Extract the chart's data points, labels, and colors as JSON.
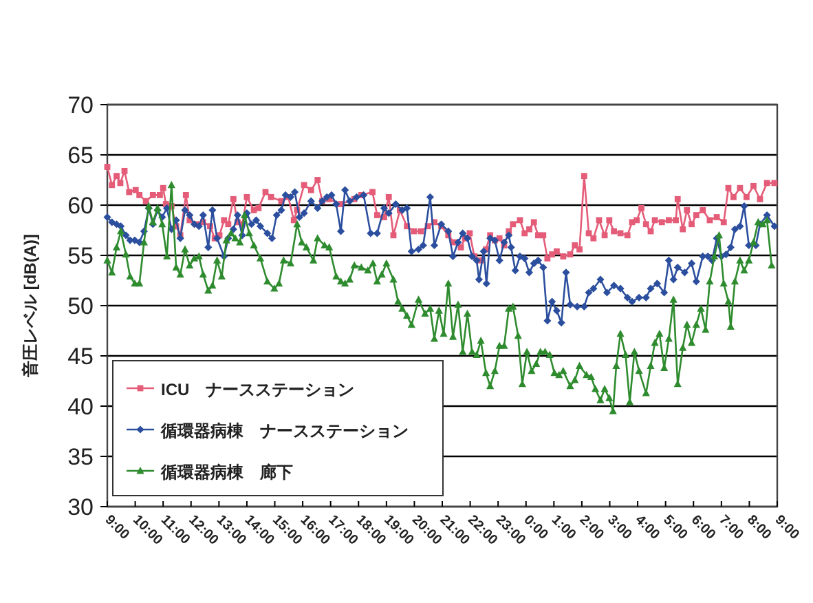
{
  "chart_data": {
    "type": "line",
    "ylabel": "音圧レベル [dB(A)]",
    "xlim": [
      "2000-01-01T09:00",
      "2000-01-02T09:00"
    ],
    "xticks": [
      {
        "value": "2000-01-01T09:00",
        "label": "9:00"
      },
      {
        "value": "2000-01-01T10:00",
        "label": "10:00"
      },
      {
        "value": "2000-01-01T11:00",
        "label": "11:00"
      },
      {
        "value": "2000-01-01T12:00",
        "label": "12:00"
      },
      {
        "value": "2000-01-01T13:00",
        "label": "13:00"
      },
      {
        "value": "2000-01-01T14:00",
        "label": "14:00"
      },
      {
        "value": "2000-01-01T15:00",
        "label": "15:00"
      },
      {
        "value": "2000-01-01T16:00",
        "label": "16:00"
      },
      {
        "value": "2000-01-01T17:00",
        "label": "17:00"
      },
      {
        "value": "2000-01-01T18:00",
        "label": "18:00"
      },
      {
        "value": "2000-01-01T19:00",
        "label": "19:00"
      },
      {
        "value": "2000-01-01T20:00",
        "label": "20:00"
      },
      {
        "value": "2000-01-01T21:00",
        "label": "21:00"
      },
      {
        "value": "2000-01-01T22:00",
        "label": "22:00"
      },
      {
        "value": "2000-01-01T23:00",
        "label": "23:00"
      },
      {
        "value": "2000-01-02T00:00",
        "label": "0:00"
      },
      {
        "value": "2000-01-02T01:00",
        "label": "1:00"
      },
      {
        "value": "2000-01-02T02:00",
        "label": "2:00"
      },
      {
        "value": "2000-01-02T03:00",
        "label": "3:00"
      },
      {
        "value": "2000-01-02T04:00",
        "label": "4:00"
      },
      {
        "value": "2000-01-02T05:00",
        "label": "5:00"
      },
      {
        "value": "2000-01-02T06:00",
        "label": "6:00"
      },
      {
        "value": "2000-01-02T07:00",
        "label": "7:00"
      },
      {
        "value": "2000-01-02T08:00",
        "label": "8:00"
      },
      {
        "value": "2000-01-02T09:00",
        "label": "9:00"
      }
    ],
    "ylim": [
      30,
      70
    ],
    "yticks": [
      30,
      35,
      40,
      45,
      50,
      55,
      60,
      65,
      70
    ],
    "grid": "y",
    "legend": "bottom left",
    "line_style": "solid",
    "series": [
      {
        "name": "ICU　ナースステーション",
        "color": "#e45c78",
        "marker": "square",
        "x": [
          "2000-01-01T09:00",
          "2000-01-01T09:10",
          "2000-01-01T09:20",
          "2000-01-01T09:28",
          "2000-01-01T09:37",
          "2000-01-01T09:47",
          "2000-01-01T10:01",
          "2000-01-01T10:09",
          "2000-01-01T10:23",
          "2000-01-01T10:38",
          "2000-01-01T10:53",
          "2000-01-01T11:00",
          "2000-01-01T11:06",
          "2000-01-01T11:18",
          "2000-01-01T11:28",
          "2000-01-01T11:37",
          "2000-01-01T11:49",
          "2000-01-01T11:57",
          "2000-01-01T12:12",
          "2000-01-01T12:26",
          "2000-01-01T12:41",
          "2000-01-01T12:51",
          "2000-01-01T13:01",
          "2000-01-01T13:11",
          "2000-01-01T13:20",
          "2000-01-01T13:31",
          "2000-01-01T13:40",
          "2000-01-01T13:50",
          "2000-01-01T14:00",
          "2000-01-01T14:15",
          "2000-01-01T14:25",
          "2000-01-01T14:40",
          "2000-01-01T14:52",
          "2000-01-01T15:14",
          "2000-01-01T15:29",
          "2000-01-01T15:41",
          "2000-01-01T15:48",
          "2000-01-01T16:03",
          "2000-01-01T16:18",
          "2000-01-01T16:32",
          "2000-01-01T16:42",
          "2000-01-01T16:57",
          "2000-01-01T17:22",
          "2000-01-01T17:51",
          "2000-01-01T18:06",
          "2000-01-01T18:30",
          "2000-01-01T18:40",
          "2000-01-01T18:55",
          "2000-01-01T19:05",
          "2000-01-01T19:15",
          "2000-01-01T19:29",
          "2000-01-01T19:44",
          "2000-01-01T19:59",
          "2000-01-01T20:14",
          "2000-01-01T20:29",
          "2000-01-01T20:43",
          "2000-01-01T20:58",
          "2000-01-01T21:13",
          "2000-01-01T21:25",
          "2000-01-01T21:40",
          "2000-01-01T21:49",
          "2000-01-01T21:59",
          "2000-01-01T22:09",
          "2000-01-01T22:23",
          "2000-01-01T22:34",
          "2000-01-01T22:43",
          "2000-01-01T22:53",
          "2000-01-01T23:03",
          "2000-01-01T23:13",
          "2000-01-01T23:23",
          "2000-01-01T23:32",
          "2000-01-01T23:47",
          "2000-01-01T23:57",
          "2000-01-02T00:07",
          "2000-01-02T00:17",
          "2000-01-02T00:26",
          "2000-01-02T00:37",
          "2000-01-02T00:46",
          "2000-01-02T00:56",
          "2000-01-02T01:06",
          "2000-01-02T01:20",
          "2000-01-02T01:35",
          "2000-01-02T01:45",
          "2000-01-02T01:55",
          "2000-01-02T02:05",
          "2000-01-02T02:15",
          "2000-01-02T02:25",
          "2000-01-02T02:37",
          "2000-01-02T02:49",
          "2000-01-02T02:59",
          "2000-01-02T03:09",
          "2000-01-02T03:23",
          "2000-01-02T03:38",
          "2000-01-02T03:48",
          "2000-01-02T03:58",
          "2000-01-02T04:08",
          "2000-01-02T04:18",
          "2000-01-02T04:28",
          "2000-01-02T04:37",
          "2000-01-02T04:52",
          "2000-01-02T05:07",
          "2000-01-02T05:22",
          "2000-01-02T05:26",
          "2000-01-02T05:37",
          "2000-01-02T05:46",
          "2000-01-02T05:56",
          "2000-01-02T06:06",
          "2000-01-02T06:20",
          "2000-01-02T06:35",
          "2000-01-02T06:50",
          "2000-01-02T07:05",
          "2000-01-02T07:15",
          "2000-01-02T07:26",
          "2000-01-02T07:40",
          "2000-01-02T07:54",
          "2000-01-02T08:09",
          "2000-01-02T08:23",
          "2000-01-02T08:38",
          "2000-01-02T08:54"
        ],
        "values": [
          63.8,
          62.0,
          62.9,
          62.2,
          63.4,
          61.3,
          61.5,
          61.0,
          60.4,
          61.0,
          61.0,
          61.7,
          60.1,
          59.9,
          57.9,
          57.0,
          61.0,
          58.5,
          58.1,
          58.3,
          57.9,
          56.7,
          57.0,
          58.5,
          58.1,
          60.6,
          58.3,
          58.1,
          60.8,
          59.5,
          59.7,
          61.3,
          60.8,
          60.4,
          60.8,
          58.5,
          59.5,
          62.0,
          61.5,
          62.5,
          60.4,
          60.6,
          60.1,
          60.6,
          61.0,
          61.3,
          59.0,
          58.8,
          60.8,
          57.0,
          59.5,
          57.9,
          57.4,
          57.4,
          57.9,
          58.3,
          57.9,
          57.0,
          56.3,
          55.8,
          56.7,
          57.2,
          54.9,
          54.5,
          55.6,
          57.0,
          56.5,
          56.7,
          56.0,
          57.4,
          58.1,
          58.5,
          57.2,
          57.6,
          58.3,
          57.0,
          57.0,
          54.7,
          55.1,
          55.4,
          54.9,
          55.1,
          56.0,
          55.6,
          62.9,
          57.2,
          56.7,
          58.5,
          57.0,
          58.5,
          57.4,
          57.2,
          57.0,
          58.3,
          58.5,
          59.7,
          58.1,
          57.4,
          58.5,
          58.3,
          58.5,
          58.5,
          60.6,
          57.6,
          59.5,
          58.1,
          59.0,
          59.5,
          58.5,
          58.8,
          58.3,
          61.7,
          60.8,
          61.7,
          60.8,
          61.9,
          60.6,
          62.2,
          62.2
        ]
      },
      {
        "name": "循環器病棟　ナースステーション",
        "color": "#2b4f9e",
        "marker": "diamond",
        "x": [
          "2000-01-01T09:00",
          "2000-01-01T09:10",
          "2000-01-01T09:20",
          "2000-01-01T09:29",
          "2000-01-01T09:40",
          "2000-01-01T09:49",
          "2000-01-01T09:59",
          "2000-01-01T10:09",
          "2000-01-01T10:19",
          "2000-01-01T10:29",
          "2000-01-01T10:38",
          "2000-01-01T10:48",
          "2000-01-01T10:58",
          "2000-01-01T11:08",
          "2000-01-01T11:18",
          "2000-01-01T11:28",
          "2000-01-01T11:37",
          "2000-01-01T11:47",
          "2000-01-01T11:57",
          "2000-01-01T12:07",
          "2000-01-01T12:17",
          "2000-01-01T12:26",
          "2000-01-01T12:37",
          "2000-01-01T12:46",
          "2000-01-01T12:56",
          "2000-01-01T13:11",
          "2000-01-01T13:20",
          "2000-01-01T13:31",
          "2000-01-01T13:40",
          "2000-01-01T13:50",
          "2000-01-01T14:00",
          "2000-01-01T14:10",
          "2000-01-01T14:20",
          "2000-01-01T14:29",
          "2000-01-01T14:44",
          "2000-01-01T14:54",
          "2000-01-01T15:04",
          "2000-01-01T15:14",
          "2000-01-01T15:23",
          "2000-01-01T15:34",
          "2000-01-01T15:43",
          "2000-01-01T15:53",
          "2000-01-01T16:03",
          "2000-01-01T16:18",
          "2000-01-01T16:32",
          "2000-01-01T16:42",
          "2000-01-01T16:52",
          "2000-01-01T17:02",
          "2000-01-01T17:12",
          "2000-01-01T17:22",
          "2000-01-01T17:31",
          "2000-01-01T17:41",
          "2000-01-01T17:56",
          "2000-01-01T18:11",
          "2000-01-01T18:26",
          "2000-01-01T18:40",
          "2000-01-01T18:55",
          "2000-01-01T19:05",
          "2000-01-01T19:20",
          "2000-01-01T19:34",
          "2000-01-01T19:44",
          "2000-01-01T19:54",
          "2000-01-01T20:09",
          "2000-01-01T20:19",
          "2000-01-01T20:34",
          "2000-01-01T20:43",
          "2000-01-01T20:58",
          "2000-01-01T21:13",
          "2000-01-01T21:23",
          "2000-01-01T21:34",
          "2000-01-01T21:44",
          "2000-01-01T21:54",
          "2000-01-01T22:04",
          "2000-01-01T22:14",
          "2000-01-01T22:19",
          "2000-01-01T22:29",
          "2000-01-01T22:35",
          "2000-01-01T22:43",
          "2000-01-01T22:53",
          "2000-01-01T23:03",
          "2000-01-01T23:13",
          "2000-01-01T23:23",
          "2000-01-01T23:28",
          "2000-01-01T23:37",
          "2000-01-01T23:47",
          "2000-01-01T23:57",
          "2000-01-02T00:07",
          "2000-01-02T00:17",
          "2000-01-02T00:26",
          "2000-01-02T00:37",
          "2000-01-02T00:46",
          "2000-01-02T00:56",
          "2000-01-02T01:06",
          "2000-01-02T01:16",
          "2000-01-02T01:26",
          "2000-01-02T01:35",
          "2000-01-02T01:50",
          "2000-01-02T02:05",
          "2000-01-02T02:15",
          "2000-01-02T02:25",
          "2000-01-02T02:40",
          "2000-01-02T02:54",
          "2000-01-02T03:09",
          "2000-01-02T03:23",
          "2000-01-02T03:38",
          "2000-01-02T03:48",
          "2000-01-02T04:03",
          "2000-01-02T04:18",
          "2000-01-02T04:28",
          "2000-01-02T04:42",
          "2000-01-02T04:57",
          "2000-01-02T05:07",
          "2000-01-02T05:17",
          "2000-01-02T05:26",
          "2000-01-02T05:41",
          "2000-01-02T05:56",
          "2000-01-02T06:06",
          "2000-01-02T06:20",
          "2000-01-02T06:31",
          "2000-01-02T06:40",
          "2000-01-02T06:50",
          "2000-01-02T07:00",
          "2000-01-02T07:10",
          "2000-01-02T07:20",
          "2000-01-02T07:29",
          "2000-01-02T07:40",
          "2000-01-02T07:49",
          "2000-01-02T07:59",
          "2000-01-02T08:14",
          "2000-01-02T08:23",
          "2000-01-02T08:38",
          "2000-01-02T08:54"
        ],
        "values": [
          58.8,
          58.3,
          58.1,
          57.9,
          57.0,
          56.5,
          56.5,
          56.3,
          57.4,
          59.7,
          58.1,
          59.5,
          58.8,
          59.7,
          57.6,
          58.5,
          56.7,
          59.5,
          59.0,
          58.1,
          57.9,
          59.0,
          55.8,
          59.5,
          56.7,
          54.9,
          56.7,
          57.6,
          59.0,
          57.0,
          59.2,
          58.1,
          58.5,
          57.9,
          57.2,
          56.7,
          59.0,
          59.5,
          61.0,
          60.8,
          61.3,
          58.8,
          59.2,
          60.4,
          59.7,
          60.4,
          60.8,
          61.0,
          60.1,
          57.4,
          61.5,
          60.4,
          60.8,
          61.0,
          57.2,
          57.2,
          59.7,
          59.2,
          60.1,
          59.5,
          59.7,
          55.4,
          55.6,
          56.0,
          60.8,
          56.0,
          58.1,
          57.4,
          54.9,
          56.3,
          57.2,
          56.7,
          54.9,
          54.5,
          52.6,
          55.4,
          52.2,
          56.7,
          56.5,
          54.5,
          56.3,
          57.0,
          55.8,
          53.5,
          54.9,
          54.7,
          53.3,
          54.2,
          54.5,
          53.8,
          48.5,
          50.4,
          49.5,
          48.3,
          53.3,
          50.1,
          49.9,
          49.9,
          51.3,
          51.7,
          52.6,
          51.3,
          52.0,
          51.7,
          50.8,
          50.4,
          50.8,
          50.8,
          51.7,
          52.2,
          51.3,
          54.5,
          52.6,
          53.8,
          53.3,
          54.2,
          52.4,
          54.9,
          54.9,
          54.5,
          56.7,
          54.9,
          55.1,
          55.8,
          57.6,
          57.9,
          59.9,
          56.0,
          56.0,
          58.1,
          59.0,
          57.9
        ]
      },
      {
        "name": "循環器病棟　廊下",
        "color": "#2e8b2e",
        "marker": "triangle",
        "x": [
          "2000-01-01T09:00",
          "2000-01-01T09:10",
          "2000-01-01T09:20",
          "2000-01-01T09:29",
          "2000-01-01T09:40",
          "2000-01-01T09:49",
          "2000-01-01T09:59",
          "2000-01-01T10:09",
          "2000-01-01T10:19",
          "2000-01-01T10:29",
          "2000-01-01T10:38",
          "2000-01-01T10:48",
          "2000-01-01T10:58",
          "2000-01-01T11:08",
          "2000-01-01T11:18",
          "2000-01-01T11:28",
          "2000-01-01T11:37",
          "2000-01-01T11:47",
          "2000-01-01T11:57",
          "2000-01-01T12:07",
          "2000-01-01T12:17",
          "2000-01-01T12:26",
          "2000-01-01T12:37",
          "2000-01-01T12:46",
          "2000-01-01T12:56",
          "2000-01-01T13:06",
          "2000-01-01T13:16",
          "2000-01-01T13:26",
          "2000-01-01T13:35",
          "2000-01-01T13:45",
          "2000-01-01T13:55",
          "2000-01-01T14:05",
          "2000-01-01T14:15",
          "2000-01-01T14:29",
          "2000-01-01T14:44",
          "2000-01-01T14:59",
          "2000-01-01T15:09",
          "2000-01-01T15:19",
          "2000-01-01T15:34",
          "2000-01-01T15:48",
          "2000-01-01T15:58",
          "2000-01-01T16:08",
          "2000-01-01T16:23",
          "2000-01-01T16:32",
          "2000-01-01T16:47",
          "2000-01-01T16:57",
          "2000-01-01T17:12",
          "2000-01-01T17:22",
          "2000-01-01T17:31",
          "2000-01-01T17:41",
          "2000-01-01T17:51",
          "2000-01-01T18:06",
          "2000-01-01T18:20",
          "2000-01-01T18:31",
          "2000-01-01T18:40",
          "2000-01-01T18:50",
          "2000-01-01T19:00",
          "2000-01-01T19:15",
          "2000-01-01T19:25",
          "2000-01-01T19:34",
          "2000-01-01T19:44",
          "2000-01-01T19:54",
          "2000-01-01T20:09",
          "2000-01-01T20:23",
          "2000-01-01T20:34",
          "2000-01-01T20:43",
          "2000-01-01T20:53",
          "2000-01-01T21:03",
          "2000-01-01T21:13",
          "2000-01-01T21:23",
          "2000-01-01T21:34",
          "2000-01-01T21:44",
          "2000-01-01T21:54",
          "2000-01-01T22:04",
          "2000-01-01T22:14",
          "2000-01-01T22:23",
          "2000-01-01T22:34",
          "2000-01-01T22:43",
          "2000-01-01T22:53",
          "2000-01-01T23:03",
          "2000-01-01T23:13",
          "2000-01-01T23:23",
          "2000-01-01T23:32",
          "2000-01-01T23:43",
          "2000-01-01T23:52",
          "2000-01-02T00:02",
          "2000-01-02T00:12",
          "2000-01-02T00:22",
          "2000-01-02T00:31",
          "2000-01-02T00:41",
          "2000-01-02T00:51",
          "2000-01-02T01:01",
          "2000-01-02T01:11",
          "2000-01-02T01:20",
          "2000-01-02T01:35",
          "2000-01-02T01:45",
          "2000-01-02T01:55",
          "2000-01-02T02:10",
          "2000-01-02T02:20",
          "2000-01-02T02:29",
          "2000-01-02T02:40",
          "2000-01-02T02:49",
          "2000-01-02T02:59",
          "2000-01-02T03:07",
          "2000-01-02T03:14",
          "2000-01-02T03:23",
          "2000-01-02T03:34",
          "2000-01-02T03:43",
          "2000-01-02T03:53",
          "2000-01-02T04:03",
          "2000-01-02T04:18",
          "2000-01-02T04:28",
          "2000-01-02T04:37",
          "2000-01-02T04:47",
          "2000-01-02T04:57",
          "2000-01-02T05:07",
          "2000-01-02T05:17",
          "2000-01-02T05:26",
          "2000-01-02T05:37",
          "2000-01-02T05:46",
          "2000-01-02T05:56",
          "2000-01-02T06:06",
          "2000-01-02T06:16",
          "2000-01-02T06:26",
          "2000-01-02T06:35",
          "2000-01-02T06:45",
          "2000-01-02T06:55",
          "2000-01-02T07:05",
          "2000-01-02T07:15",
          "2000-01-02T07:20",
          "2000-01-02T07:29",
          "2000-01-02T07:40",
          "2000-01-02T07:49",
          "2000-01-02T07:59",
          "2000-01-02T08:09",
          "2000-01-02T08:19",
          "2000-01-02T08:29",
          "2000-01-02T08:38",
          "2000-01-02T08:48"
        ],
        "values": [
          54.5,
          53.3,
          55.8,
          57.4,
          55.1,
          52.9,
          52.2,
          52.2,
          56.3,
          59.9,
          58.3,
          59.7,
          58.1,
          54.9,
          62.0,
          53.8,
          53.1,
          55.6,
          54.0,
          54.7,
          54.9,
          53.1,
          51.5,
          52.0,
          54.5,
          52.9,
          56.5,
          57.2,
          56.7,
          56.3,
          59.0,
          57.2,
          56.0,
          54.7,
          52.4,
          51.7,
          52.2,
          54.5,
          54.2,
          58.1,
          56.3,
          55.8,
          54.5,
          56.7,
          56.0,
          55.8,
          52.9,
          52.4,
          52.2,
          52.6,
          54.0,
          53.8,
          53.5,
          54.2,
          52.4,
          53.1,
          54.2,
          52.6,
          50.4,
          49.7,
          49.0,
          48.1,
          50.6,
          49.2,
          49.7,
          46.7,
          49.5,
          47.2,
          52.2,
          46.9,
          50.1,
          45.4,
          49.2,
          45.4,
          45.1,
          46.5,
          43.3,
          42.0,
          43.5,
          46.0,
          46.0,
          49.7,
          49.9,
          47.0,
          42.2,
          45.4,
          43.5,
          44.2,
          45.4,
          45.4,
          45.1,
          43.3,
          43.1,
          43.5,
          42.0,
          42.6,
          44.0,
          43.1,
          42.9,
          41.7,
          40.6,
          41.7,
          40.8,
          39.5,
          44.0,
          47.2,
          45.1,
          40.4,
          45.4,
          43.5,
          41.3,
          44.0,
          46.3,
          47.2,
          43.8,
          46.7,
          50.6,
          42.2,
          45.8,
          48.1,
          46.3,
          48.1,
          49.7,
          47.6,
          52.4,
          54.9,
          57.0,
          52.2,
          50.4,
          47.9,
          52.4,
          54.5,
          53.5,
          54.5,
          56.3,
          58.3,
          58.1,
          58.5,
          54.0
        ]
      }
    ]
  }
}
